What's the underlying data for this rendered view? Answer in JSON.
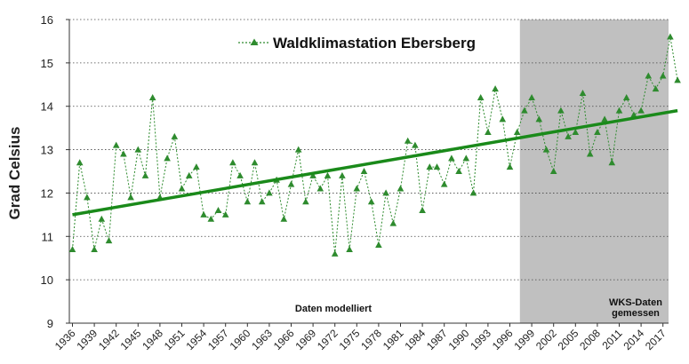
{
  "chart_data": {
    "type": "line",
    "title": "",
    "ylabel": "Grad Celsius",
    "xlabel": "",
    "ylim": [
      9,
      16
    ],
    "yticks": [
      9,
      10,
      11,
      12,
      13,
      14,
      15,
      16
    ],
    "xlim": [
      1936,
      2019
    ],
    "xticks": [
      1936,
      1939,
      1942,
      1945,
      1948,
      1951,
      1954,
      1957,
      1960,
      1963,
      1966,
      1969,
      1972,
      1975,
      1978,
      1981,
      1984,
      1987,
      1990,
      1993,
      1996,
      1999,
      2002,
      2005,
      2008,
      2011,
      2014,
      2017
    ],
    "grid": "horizontal dotted",
    "legend": {
      "label": "Waldklimastation Ebersberg",
      "placement": "top-right"
    },
    "series": [
      {
        "name": "Waldklimastation Ebersberg",
        "color": "#2e8b2e",
        "style": "dotted line with triangle markers",
        "x": [
          1936,
          1937,
          1938,
          1939,
          1940,
          1941,
          1942,
          1943,
          1944,
          1945,
          1946,
          1947,
          1948,
          1949,
          1950,
          1951,
          1952,
          1953,
          1954,
          1955,
          1956,
          1957,
          1958,
          1959,
          1960,
          1961,
          1962,
          1963,
          1964,
          1965,
          1966,
          1967,
          1968,
          1969,
          1970,
          1971,
          1972,
          1973,
          1974,
          1975,
          1976,
          1977,
          1978,
          1979,
          1980,
          1981,
          1982,
          1983,
          1984,
          1985,
          1986,
          1987,
          1988,
          1989,
          1990,
          1991,
          1992,
          1993,
          1994,
          1995,
          1996,
          1997,
          1998,
          1999,
          2000,
          2001,
          2002,
          2003,
          2004,
          2005,
          2006,
          2007,
          2008,
          2009,
          2010,
          2011,
          2012,
          2013,
          2014,
          2015,
          2016,
          2017,
          2018,
          2019
        ],
        "values": [
          10.7,
          12.7,
          11.9,
          10.7,
          11.4,
          10.9,
          13.1,
          12.9,
          11.9,
          13.0,
          12.4,
          14.2,
          11.9,
          12.8,
          13.3,
          12.1,
          12.4,
          12.6,
          11.5,
          11.4,
          11.6,
          11.5,
          12.7,
          12.4,
          11.8,
          12.7,
          11.8,
          12.0,
          12.3,
          11.4,
          12.2,
          13.0,
          11.8,
          12.4,
          12.1,
          12.4,
          10.6,
          12.4,
          10.7,
          12.1,
          12.5,
          11.8,
          10.8,
          12.0,
          11.3,
          12.1,
          13.2,
          13.1,
          11.6,
          12.6,
          12.6,
          12.2,
          12.8,
          12.5,
          12.8,
          12.0,
          14.2,
          13.4,
          14.4,
          13.7,
          12.6,
          13.4,
          13.9,
          14.2,
          13.7,
          13.0,
          12.5,
          13.9,
          13.3,
          13.4,
          14.3,
          12.9,
          13.4,
          13.7,
          12.7,
          13.9,
          14.2,
          13.8,
          13.9,
          14.7,
          14.4,
          14.7,
          15.6,
          14.6
        ]
      },
      {
        "name": "Trend",
        "type": "linear",
        "color": "#1a8a1a",
        "x": [
          1936,
          2019
        ],
        "values": [
          11.5,
          13.9
        ]
      }
    ],
    "regions": [
      {
        "label": "Daten modelliert",
        "from": 1936,
        "to": 1998,
        "fill": "#ffffff"
      },
      {
        "label_line1": "WKS-Daten",
        "label_line2": "gemessen",
        "from": 1998,
        "to": 2019.5,
        "fill": "#c0c0c0"
      }
    ]
  }
}
